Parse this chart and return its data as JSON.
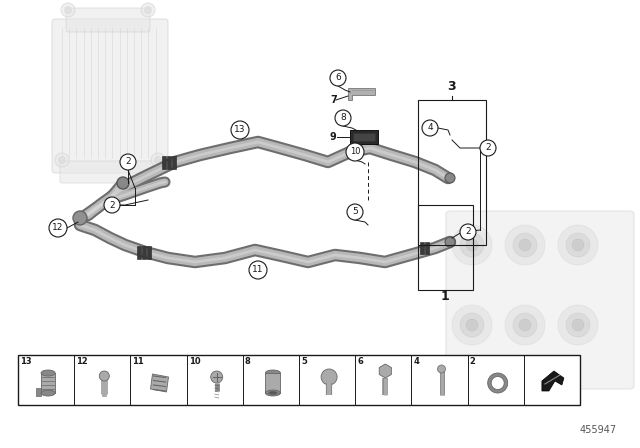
{
  "bg_color": "#ffffff",
  "part_number": "455947",
  "fig_width": 6.4,
  "fig_height": 4.48,
  "dpi": 100,
  "black": "#1a1a1a",
  "pipe_outer": "#6e6e6e",
  "pipe_inner": "#b8b8b8",
  "pipe_highlight": "#d8d8d8",
  "ghost_color": "#d0d0d0",
  "ghost_fill": "#e8e8e8",
  "clamp_dark": "#4a4a4a",
  "bracket_color": "#888888",
  "table_border": "#1a1a1a"
}
